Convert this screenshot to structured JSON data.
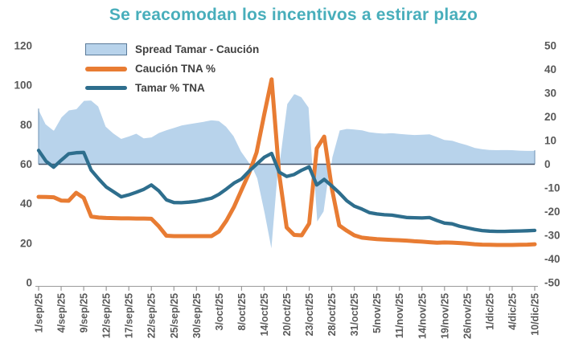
{
  "title": "Se reacomodan los incentivos a estirar plazo",
  "title_color": "#48aebb",
  "legend": {
    "items": [
      {
        "label": "Spread Tamar - Caución",
        "swatch": "area",
        "color": "#b8d3eb"
      },
      {
        "label": "Caución TNA %",
        "swatch": "line",
        "color": "#e87c33"
      },
      {
        "label": "Tamar % TNA",
        "swatch": "line",
        "color": "#2e6e8d"
      }
    ]
  },
  "colors": {
    "area_fill": "#b8d3eb",
    "area_top_outline": "#ffffff",
    "area_edge": "#7fa0bd",
    "caucion_line": "#e87c33",
    "tamar_line": "#2e6e8d",
    "zero_baseline": "#44546a",
    "axis_line": "#9a9a9a",
    "tick_label": "#595959"
  },
  "chart_data": {
    "type": "combo",
    "title": "Se reacomodan los incentivos a estirar plazo",
    "x_count": 67,
    "label_every": 3,
    "categories": [
      "1/sep/25",
      "4/sep/25",
      "9/sep/25",
      "12/sep/25",
      "17/sep/25",
      "22/sep/25",
      "25/sep/25",
      "30/sep/25",
      "3/oct/25",
      "8/oct/25",
      "14/oct/25",
      "20/oct/25",
      "23/oct/25",
      "28/oct/25",
      "31/oct/25",
      "5/nov/25",
      "11/nov/25",
      "14/nov/25",
      "19/nov/25",
      "26/nov/25",
      "1/dic/25",
      "4/dic/25",
      "10/dic/25"
    ],
    "left_axis": {
      "min": 0,
      "max": 120,
      "step": 20,
      "ticks": [
        120,
        100,
        80,
        60,
        40,
        20,
        0
      ]
    },
    "right_axis": {
      "min": -50,
      "max": 50,
      "step": 10,
      "ticks": [
        50,
        40,
        30,
        20,
        10,
        0,
        -10,
        -20,
        -30,
        -40,
        -50
      ]
    },
    "grid": false,
    "legend_position": "top-left",
    "series": [
      {
        "name": "Spread Tamar - Caución",
        "type": "area",
        "axis": "right",
        "color": "#b8d3eb",
        "values": [
          23.5,
          17,
          14.5,
          20,
          23,
          23.5,
          27,
          27.2,
          24.5,
          16,
          13.2,
          11,
          12,
          13.2,
          11.2,
          11.6,
          13.5,
          14.6,
          15.6,
          16.6,
          17.2,
          17.7,
          18.2,
          18.8,
          18.5,
          16,
          12,
          5.5,
          1,
          -6,
          -21,
          -37.5,
          1,
          25.5,
          30,
          28.5,
          24,
          -25,
          -20,
          3,
          14.5,
          15.2,
          14.9,
          14.6,
          13.8,
          13.4,
          13.2,
          13.4,
          13.1,
          12.8,
          12.6,
          12.7,
          12.9,
          11.8,
          10.5,
          10.2,
          9.2,
          8.3,
          7.2,
          6.6,
          6.3,
          6.2,
          6.3,
          6.2,
          6,
          5.9,
          5.9
        ]
      },
      {
        "name": "Caución TNA %",
        "type": "line",
        "axis": "left",
        "color": "#e87c33",
        "values": [
          43.5,
          43.4,
          43.3,
          41.6,
          41.5,
          45.5,
          43,
          33.5,
          33,
          32.8,
          32.7,
          32.6,
          32.6,
          32.5,
          32.5,
          32.4,
          28.5,
          23.8,
          23.6,
          23.6,
          23.6,
          23.6,
          23.6,
          23.6,
          26,
          31.5,
          38.5,
          47,
          55.5,
          66,
          85,
          103,
          55,
          28,
          24.2,
          24,
          30,
          68,
          74,
          48,
          29,
          26.3,
          24,
          22.8,
          22.4,
          22.1,
          21.9,
          21.7,
          21.5,
          21.3,
          21,
          20.8,
          20.5,
          20.2,
          20.4,
          20.3,
          20.1,
          19.8,
          19.5,
          19.3,
          19.2,
          19.1,
          19.1,
          19.1,
          19.2,
          19.3,
          19.5
        ]
      },
      {
        "name": "Tamar % TNA",
        "type": "line",
        "axis": "left",
        "color": "#2e6e8d",
        "values": [
          67,
          61.5,
          58.5,
          62,
          65.3,
          65.8,
          66,
          57,
          52.5,
          48.5,
          46,
          43.5,
          44.5,
          45.8,
          47.3,
          49.5,
          46.5,
          42,
          40.6,
          40.5,
          40.8,
          41.2,
          42,
          42.8,
          44.8,
          47.5,
          50.5,
          52.5,
          56.5,
          60,
          63.5,
          65.5,
          56,
          53.8,
          54.8,
          57,
          58.7,
          49.5,
          52.3,
          49,
          45.5,
          41.5,
          38.8,
          37.3,
          35.5,
          34.8,
          34.4,
          34.2,
          33.6,
          33,
          32.9,
          32.8,
          33,
          31.5,
          30.2,
          29.8,
          28.6,
          27.8,
          27,
          26.4,
          26.1,
          26,
          26,
          26.1,
          26.2,
          26.3,
          26.5
        ]
      }
    ]
  }
}
